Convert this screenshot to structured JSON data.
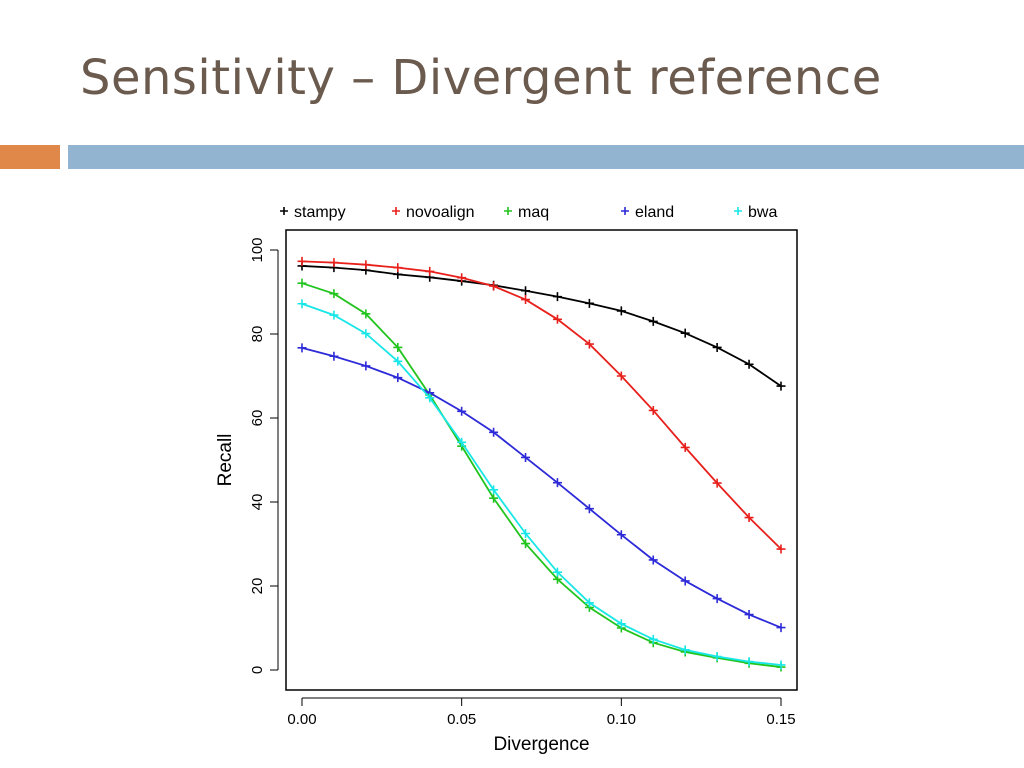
{
  "slide": {
    "title": "Sensitivity – Divergent reference",
    "accent_color_left": "#e0874a",
    "accent_color_right": "#92b4d0",
    "title_color": "#6b5a4e"
  },
  "chart_data": {
    "type": "line",
    "xlabel": "Divergence",
    "ylabel": "Recall",
    "xlim": [
      0.0,
      0.15
    ],
    "ylim": [
      0,
      100
    ],
    "xticks": [
      0.0,
      0.05,
      0.1,
      0.15
    ],
    "xtick_labels": [
      "0.00",
      "0.05",
      "0.10",
      "0.15"
    ],
    "yticks": [
      0,
      20,
      40,
      60,
      80,
      100
    ],
    "ytick_labels": [
      "0",
      "20",
      "40",
      "60",
      "80",
      "100"
    ],
    "grid": false,
    "legend_position": "top",
    "marker": "+",
    "x": [
      0.0,
      0.01,
      0.02,
      0.03,
      0.04,
      0.05,
      0.06,
      0.07,
      0.08,
      0.09,
      0.1,
      0.11,
      0.12,
      0.13,
      0.14,
      0.15
    ],
    "series": [
      {
        "name": "stampy",
        "color": "#000000",
        "values": [
          96.2,
          95.8,
          95.2,
          94.2,
          93.5,
          92.6,
          91.6,
          90.3,
          88.9,
          87.3,
          85.5,
          83.0,
          80.2,
          76.8,
          72.8,
          67.6
        ]
      },
      {
        "name": "novoalign",
        "color": "#e8201c",
        "values": [
          97.3,
          97.0,
          96.5,
          95.8,
          94.9,
          93.4,
          91.4,
          88.2,
          83.5,
          77.6,
          70.0,
          61.8,
          53.0,
          44.5,
          36.3,
          28.8
        ]
      },
      {
        "name": "maq",
        "color": "#22c41e",
        "values": [
          92.1,
          89.6,
          84.8,
          76.8,
          65.5,
          53.3,
          40.9,
          30.1,
          21.6,
          14.9,
          10.0,
          6.5,
          4.3,
          2.9,
          1.6,
          0.7
        ]
      },
      {
        "name": "eland",
        "color": "#2d2ad8",
        "values": [
          76.7,
          74.7,
          72.4,
          69.6,
          66.0,
          61.6,
          56.6,
          50.6,
          44.6,
          38.4,
          32.2,
          26.2,
          21.2,
          17.0,
          13.2,
          10.1
        ]
      },
      {
        "name": "bwa",
        "color": "#19e6e6",
        "values": [
          87.2,
          84.5,
          80.1,
          73.5,
          64.8,
          54.2,
          42.9,
          32.5,
          23.3,
          16.0,
          11.0,
          7.3,
          4.8,
          3.2,
          2.0,
          1.2
        ]
      }
    ]
  }
}
